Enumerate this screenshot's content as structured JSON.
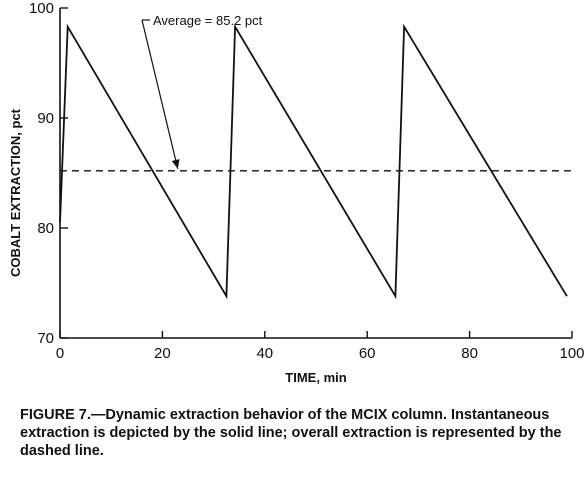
{
  "chart_data": {
    "type": "line",
    "xlabel": "TIME, min",
    "ylabel": "COBALT EXTRACTION, pct",
    "xlim": [
      0,
      100
    ],
    "ylim": [
      70,
      100
    ],
    "x_ticks": [
      0,
      20,
      40,
      60,
      80,
      100
    ],
    "y_ticks": [
      70,
      80,
      90,
      100
    ],
    "grid": false,
    "series": [
      {
        "style": "solid",
        "x": [
          0,
          1.5,
          32.5,
          32.5,
          34.2,
          65.5,
          65.5,
          67.2,
          99
        ],
        "y": [
          80.5,
          98.3,
          73.8,
          73.8,
          98.3,
          73.8,
          73.8,
          98.3,
          73.8
        ]
      },
      {
        "style": "dashed",
        "x": [
          0,
          100
        ],
        "y": [
          85.2,
          85.2
        ]
      }
    ],
    "annotation": {
      "text": "Average = 85.2 pct",
      "target_x": 23,
      "target_y": 85.2
    }
  },
  "caption": "FIGURE 7.—Dynamic extraction behavior of the MCIX column. Instantaneous extraction is depicted by the solid line; overall extraction is represented by the dashed line."
}
